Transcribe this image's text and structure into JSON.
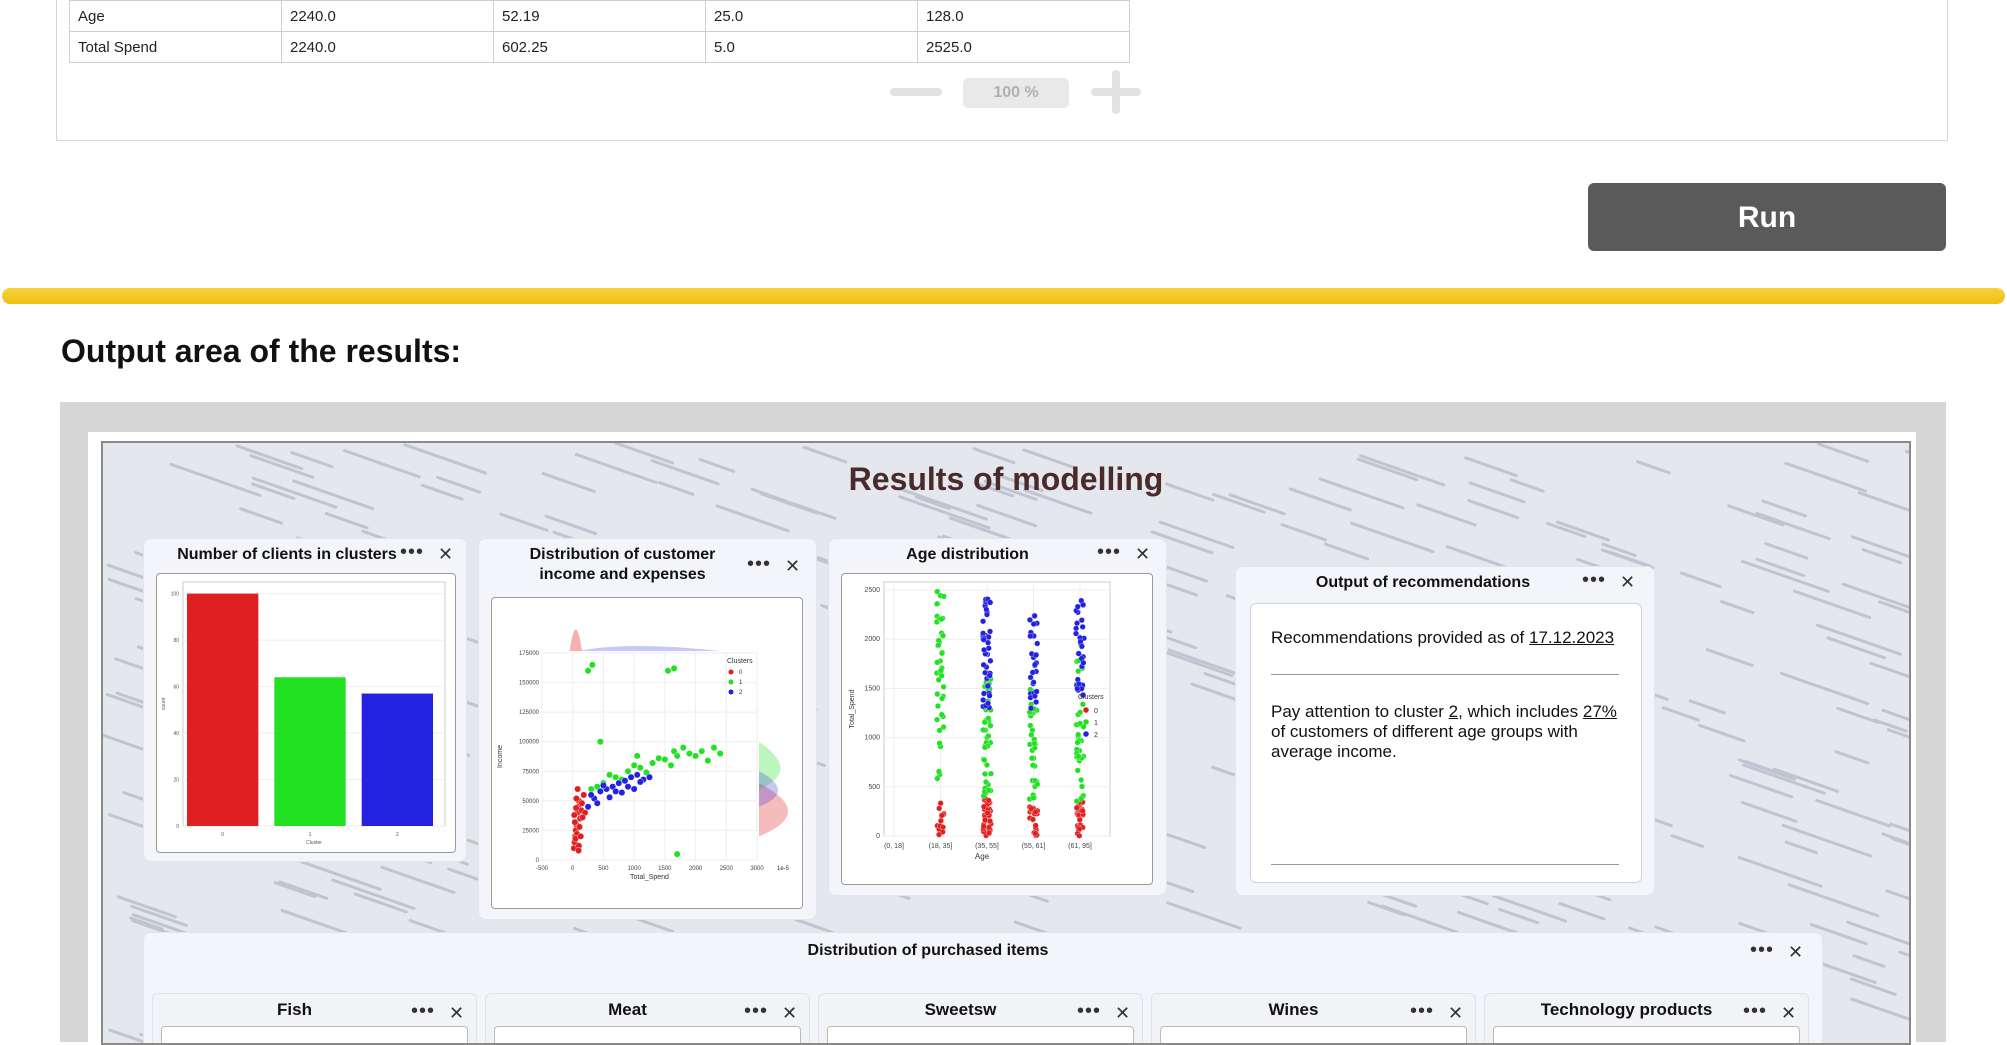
{
  "stats_table": {
    "rows": [
      [
        "Age",
        "2240.0",
        "52.19",
        "25.0",
        "128.0"
      ],
      [
        "Total Spend",
        "2240.0",
        "602.25",
        "5.0",
        "2525.0"
      ]
    ]
  },
  "zoom": {
    "value": "100 %"
  },
  "run_button": {
    "label": "Run"
  },
  "output_section": {
    "title": "Output area of the results:"
  },
  "dashboard": {
    "title": "Results of modelling",
    "cards": {
      "clusters": {
        "title": "Number of clients in clusters"
      },
      "income": {
        "title_line1": "Distribution of customer",
        "title_line2": "income and expenses"
      },
      "age": {
        "title": "Age distribution"
      },
      "recommendations": {
        "title": "Output of recommendations",
        "line1_prefix": "Recommendations provided as of ",
        "date": "17.12.2023",
        "text_a": "Pay attention to cluster ",
        "cluster": "2",
        "text_b": ", which includes ",
        "percent": "27%",
        "text_c": " of customers of different age groups with average income."
      },
      "purchased": {
        "title": "Distribution of purchased items",
        "items": [
          "Fish",
          "Meat",
          "Sweetsw",
          "Wines",
          "Technology products"
        ]
      }
    },
    "more_glyph": "•••",
    "close_glyph": "✕"
  },
  "colors": {
    "cluster0": "#e02020",
    "cluster1": "#22e022",
    "cluster2": "#2222e0",
    "accent_yellow": "#f5c518"
  },
  "chart_data": [
    {
      "type": "bar",
      "categories": [
        "0",
        "1",
        "2"
      ],
      "values": [
        100,
        64,
        57
      ],
      "xlabel": "Cluster",
      "ylabel": "count",
      "ylim": [
        0,
        105
      ],
      "yticks": [
        0,
        20,
        40,
        60,
        80,
        100
      ]
    },
    {
      "type": "scatter",
      "xlabel": "Total_Spend",
      "ylabel": "Income",
      "legend_title": "Clusters",
      "legend": [
        "0",
        "1",
        "2"
      ],
      "xlim": [
        -500,
        3000
      ],
      "ylim": [
        0,
        175000
      ],
      "xticks": [
        -500,
        0,
        500,
        1000,
        1500,
        2000,
        2500,
        3000
      ],
      "yticks": [
        0,
        25000,
        50000,
        75000,
        100000,
        125000,
        150000,
        175000
      ],
      "corner_note": "1e-5",
      "series": [
        {
          "name": "0",
          "points": [
            [
              20,
              10000
            ],
            [
              40,
              20000
            ],
            [
              60,
              30000
            ],
            [
              80,
              40000
            ],
            [
              100,
              50000
            ],
            [
              50,
              25000
            ],
            [
              120,
              35000
            ],
            [
              30,
              15000
            ],
            [
              90,
              45000
            ],
            [
              150,
              48000
            ],
            [
              70,
              22000
            ],
            [
              110,
              28000
            ],
            [
              25,
              38000
            ],
            [
              140,
              42000
            ],
            [
              60,
              52000
            ],
            [
              180,
              55000
            ],
            [
              45,
              18000
            ],
            [
              100,
              12000
            ],
            [
              200,
              40000
            ],
            [
              80,
              60000
            ],
            [
              130,
              20000
            ],
            [
              35,
              32000
            ],
            [
              160,
              36000
            ],
            [
              55,
              44000
            ],
            [
              95,
              8000
            ]
          ]
        },
        {
          "name": "1",
          "points": [
            [
              300,
              60000
            ],
            [
              500,
              65000
            ],
            [
              700,
              70000
            ],
            [
              900,
              75000
            ],
            [
              1100,
              78000
            ],
            [
              1300,
              82000
            ],
            [
              1500,
              85000
            ],
            [
              1700,
              88000
            ],
            [
              1900,
              90000
            ],
            [
              2100,
              92000
            ],
            [
              2300,
              95000
            ],
            [
              600,
              72000
            ],
            [
              800,
              68000
            ],
            [
              1000,
              80000
            ],
            [
              1200,
              74000
            ],
            [
              1400,
              86000
            ],
            [
              1600,
              80000
            ],
            [
              1800,
              95000
            ],
            [
              2000,
              88000
            ],
            [
              2200,
              84000
            ],
            [
              400,
              62000
            ],
            [
              1050,
              88000
            ],
            [
              1650,
              92000
            ],
            [
              2400,
              90000
            ],
            [
              250,
              160000
            ],
            [
              320,
              165000
            ],
            [
              1550,
              160000
            ],
            [
              1650,
              162000
            ],
            [
              450,
              100000
            ],
            [
              1700,
              5000
            ]
          ]
        },
        {
          "name": "2",
          "points": [
            [
              250,
              45000
            ],
            [
              350,
              52000
            ],
            [
              450,
              58000
            ],
            [
              550,
              60000
            ],
            [
              650,
              62000
            ],
            [
              750,
              65000
            ],
            [
              850,
              67000
            ],
            [
              950,
              70000
            ],
            [
              1050,
              72000
            ],
            [
              1150,
              68000
            ],
            [
              300,
              55000
            ],
            [
              500,
              63000
            ],
            [
              700,
              58000
            ],
            [
              900,
              62000
            ],
            [
              1100,
              66000
            ],
            [
              400,
              48000
            ],
            [
              600,
              53000
            ],
            [
              800,
              57000
            ],
            [
              1000,
              60000
            ],
            [
              1250,
              70000
            ]
          ]
        }
      ]
    },
    {
      "type": "scatter",
      "xlabel": "Age",
      "ylabel": "Total_Spend",
      "legend_title": "Clusters",
      "legend": [
        "0",
        "1",
        "2"
      ],
      "categories": [
        "(0, 18]",
        "(18, 35]",
        "(35, 55]",
        "(55, 61]",
        "(61, 95]"
      ],
      "ylim": [
        0,
        2500
      ],
      "yticks": [
        0,
        500,
        1000,
        1500,
        2000,
        2500
      ]
    }
  ]
}
